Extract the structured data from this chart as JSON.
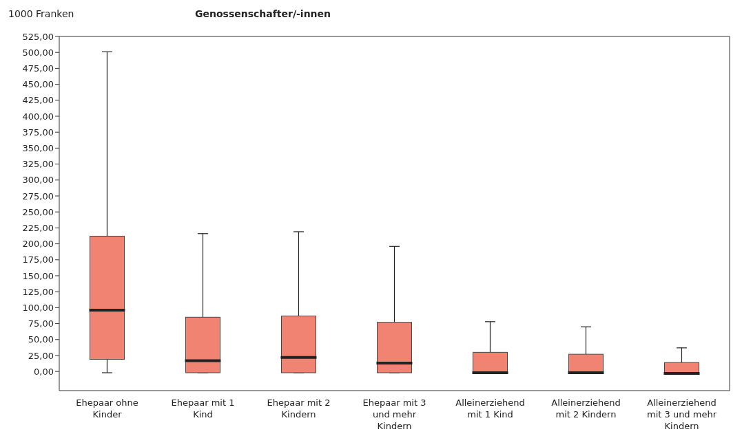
{
  "chart_data": {
    "type": "box",
    "title": "Genossenschafter/-innen",
    "ylabel": "1000 Franken",
    "categories": [
      "Ehepaar ohne Kinder",
      "Ehepaar mit 1 Kind",
      "Ehepaar mit 2 Kindern",
      "Ehepaar mit 3 und mehr Kindern",
      "Alleinerziehend mit 1 Kind",
      "Alleinerziehend mit 2 Kindern",
      "Alleinerziehend mit 3 und mehr Kindern"
    ],
    "color": "#f08372",
    "boxes": [
      {
        "low": -2,
        "q1": 19,
        "median": 96,
        "q3": 212,
        "high": 501
      },
      {
        "low": -2,
        "q1": -2,
        "median": 17,
        "q3": 85,
        "high": 216
      },
      {
        "low": -2,
        "q1": -2,
        "median": 22,
        "q3": 87,
        "high": 219
      },
      {
        "low": -2,
        "q1": -2,
        "median": 13,
        "q3": 77,
        "high": 196
      },
      {
        "low": -2,
        "q1": -2,
        "median": -2,
        "q3": 30,
        "high": 78
      },
      {
        "low": -2,
        "q1": -2,
        "median": -2,
        "q3": 27,
        "high": 70
      },
      {
        "low": -3,
        "q1": -3,
        "median": -3,
        "q3": 14,
        "high": 37
      }
    ],
    "ylim": [
      -30,
      525
    ],
    "yticks": [
      {
        "value": 0,
        "label": "0,00"
      },
      {
        "value": 25,
        "label": "25,00"
      },
      {
        "value": 50,
        "label": "50,00"
      },
      {
        "value": 75,
        "label": "75,00"
      },
      {
        "value": 100,
        "label": "100,00"
      },
      {
        "value": 125,
        "label": "125,00"
      },
      {
        "value": 150,
        "label": "150,00"
      },
      {
        "value": 175,
        "label": "175,00"
      },
      {
        "value": 200,
        "label": "200,00"
      },
      {
        "value": 225,
        "label": "225,00"
      },
      {
        "value": 250,
        "label": "250,00"
      },
      {
        "value": 275,
        "label": "275,00"
      },
      {
        "value": 300,
        "label": "300,00"
      },
      {
        "value": 325,
        "label": "325,00"
      },
      {
        "value": 350,
        "label": "350,00"
      },
      {
        "value": 375,
        "label": "375,00"
      },
      {
        "value": 400,
        "label": "400,00"
      },
      {
        "value": 425,
        "label": "425,00"
      },
      {
        "value": 450,
        "label": "450,00"
      },
      {
        "value": 475,
        "label": "475,00"
      },
      {
        "value": 500,
        "label": "500,00"
      },
      {
        "value": 525,
        "label": "525,00"
      }
    ],
    "grid": false,
    "legend": false
  }
}
